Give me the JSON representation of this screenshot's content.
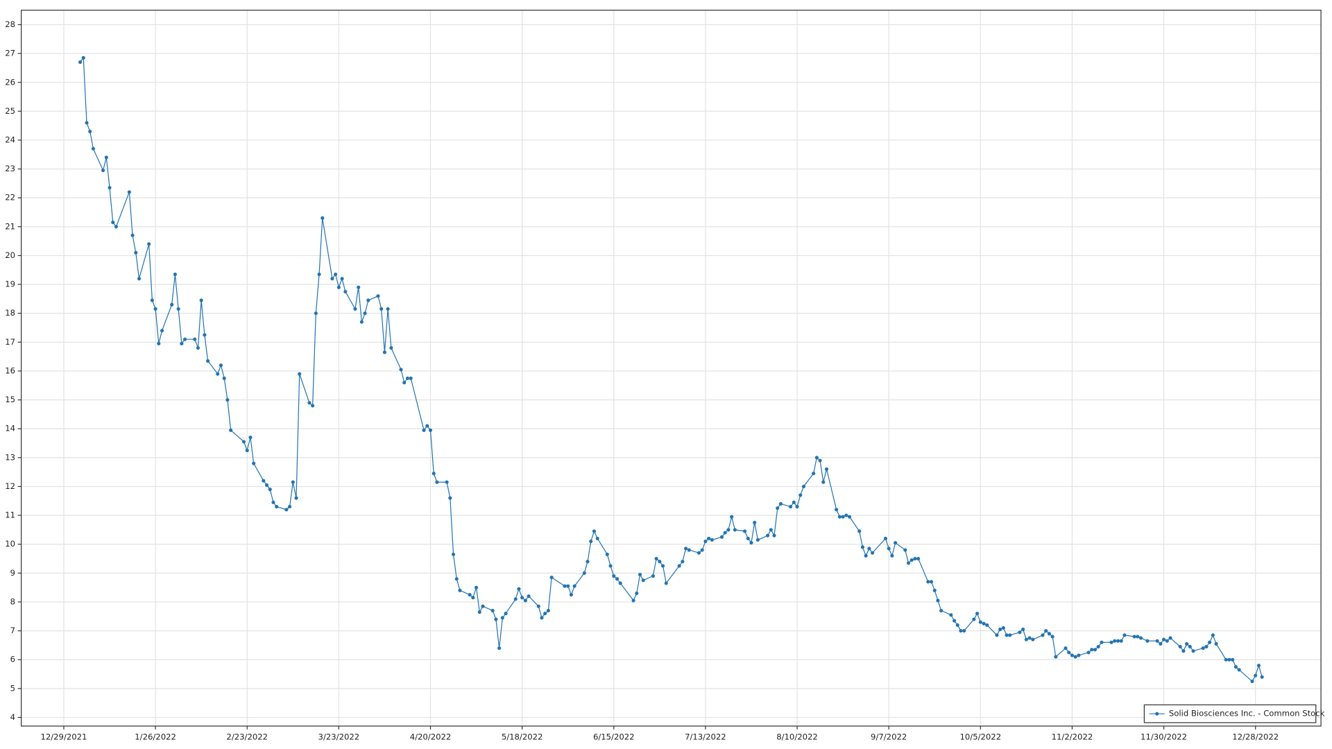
{
  "chart_data": {
    "type": "line",
    "legend": "bottom-right",
    "grid": true,
    "xlim": [
      "12/16/2021",
      "1/17/2023"
    ],
    "xticks": [
      "12/29/2021",
      "1/26/2022",
      "2/23/2022",
      "3/23/2022",
      "4/20/2022",
      "5/18/2022",
      "6/15/2022",
      "7/13/2022",
      "8/10/2022",
      "9/7/2022",
      "10/5/2022",
      "11/2/2022",
      "11/30/2022",
      "12/28/2022"
    ],
    "ylim": [
      3.7,
      28.5
    ],
    "yticks": [
      4,
      5,
      6,
      7,
      8,
      9,
      10,
      11,
      12,
      13,
      14,
      15,
      16,
      17,
      18,
      19,
      20,
      21,
      22,
      23,
      24,
      25,
      26,
      27,
      28
    ],
    "x": [
      "1/3/2022",
      "1/4/2022",
      "1/5/2022",
      "1/6/2022",
      "1/7/2022",
      "1/10/2022",
      "1/11/2022",
      "1/12/2022",
      "1/13/2022",
      "1/14/2022",
      "1/18/2022",
      "1/19/2022",
      "1/20/2022",
      "1/21/2022",
      "1/24/2022",
      "1/25/2022",
      "1/26/2022",
      "1/27/2022",
      "1/28/2022",
      "1/31/2022",
      "2/1/2022",
      "2/2/2022",
      "2/3/2022",
      "2/4/2022",
      "2/7/2022",
      "2/8/2022",
      "2/9/2022",
      "2/10/2022",
      "2/11/2022",
      "2/14/2022",
      "2/15/2022",
      "2/16/2022",
      "2/17/2022",
      "2/18/2022",
      "2/22/2022",
      "2/23/2022",
      "2/24/2022",
      "2/25/2022",
      "2/28/2022",
      "3/1/2022",
      "3/2/2022",
      "3/3/2022",
      "3/4/2022",
      "3/7/2022",
      "3/8/2022",
      "3/9/2022",
      "3/10/2022",
      "3/11/2022",
      "3/14/2022",
      "3/15/2022",
      "3/16/2022",
      "3/17/2022",
      "3/18/2022",
      "3/21/2022",
      "3/22/2022",
      "3/23/2022",
      "3/24/2022",
      "3/25/2022",
      "3/28/2022",
      "3/29/2022",
      "3/30/2022",
      "3/31/2022",
      "4/1/2022",
      "4/4/2022",
      "4/5/2022",
      "4/6/2022",
      "4/7/2022",
      "4/8/2022",
      "4/11/2022",
      "4/12/2022",
      "4/13/2022",
      "4/14/2022",
      "4/18/2022",
      "4/19/2022",
      "4/20/2022",
      "4/21/2022",
      "4/22/2022",
      "4/25/2022",
      "4/26/2022",
      "4/27/2022",
      "4/28/2022",
      "4/29/2022",
      "5/2/2022",
      "5/3/2022",
      "5/4/2022",
      "5/5/2022",
      "5/6/2022",
      "5/9/2022",
      "5/10/2022",
      "5/11/2022",
      "5/12/2022",
      "5/13/2022",
      "5/16/2022",
      "5/17/2022",
      "5/18/2022",
      "5/19/2022",
      "5/20/2022",
      "5/23/2022",
      "5/24/2022",
      "5/25/2022",
      "5/26/2022",
      "5/27/2022",
      "5/31/2022",
      "6/1/2022",
      "6/2/2022",
      "6/3/2022",
      "6/6/2022",
      "6/7/2022",
      "6/8/2022",
      "6/9/2022",
      "6/10/2022",
      "6/13/2022",
      "6/14/2022",
      "6/15/2022",
      "6/16/2022",
      "6/17/2022",
      "6/21/2022",
      "6/22/2022",
      "6/23/2022",
      "6/24/2022",
      "6/27/2022",
      "6/28/2022",
      "6/29/2022",
      "6/30/2022",
      "7/1/2022",
      "7/5/2022",
      "7/6/2022",
      "7/7/2022",
      "7/8/2022",
      "7/11/2022",
      "7/12/2022",
      "7/13/2022",
      "7/14/2022",
      "7/15/2022",
      "7/18/2022",
      "7/19/2022",
      "7/20/2022",
      "7/21/2022",
      "7/22/2022",
      "7/25/2022",
      "7/26/2022",
      "7/27/2022",
      "7/28/2022",
      "7/29/2022",
      "8/1/2022",
      "8/2/2022",
      "8/3/2022",
      "8/4/2022",
      "8/5/2022",
      "8/8/2022",
      "8/9/2022",
      "8/10/2022",
      "8/11/2022",
      "8/12/2022",
      "8/15/2022",
      "8/16/2022",
      "8/17/2022",
      "8/18/2022",
      "8/19/2022",
      "8/22/2022",
      "8/23/2022",
      "8/24/2022",
      "8/25/2022",
      "8/26/2022",
      "8/29/2022",
      "8/30/2022",
      "8/31/2022",
      "9/1/2022",
      "9/2/2022",
      "9/6/2022",
      "9/7/2022",
      "9/8/2022",
      "9/9/2022",
      "9/12/2022",
      "9/13/2022",
      "9/14/2022",
      "9/15/2022",
      "9/16/2022",
      "9/19/2022",
      "9/20/2022",
      "9/21/2022",
      "9/22/2022",
      "9/23/2022",
      "9/26/2022",
      "9/27/2022",
      "9/28/2022",
      "9/29/2022",
      "9/30/2022",
      "10/3/2022",
      "10/4/2022",
      "10/5/2022",
      "10/6/2022",
      "10/7/2022",
      "10/10/2022",
      "10/11/2022",
      "10/12/2022",
      "10/13/2022",
      "10/14/2022",
      "10/17/2022",
      "10/18/2022",
      "10/19/2022",
      "10/20/2022",
      "10/21/2022",
      "10/24/2022",
      "10/25/2022",
      "10/26/2022",
      "10/27/2022",
      "10/28/2022",
      "10/31/2022",
      "11/1/2022",
      "11/2/2022",
      "11/3/2022",
      "11/4/2022",
      "11/7/2022",
      "11/8/2022",
      "11/9/2022",
      "11/10/2022",
      "11/11/2022",
      "11/14/2022",
      "11/15/2022",
      "11/16/2022",
      "11/17/2022",
      "11/18/2022",
      "11/21/2022",
      "11/22/2022",
      "11/23/2022",
      "11/25/2022",
      "11/28/2022",
      "11/29/2022",
      "11/30/2022",
      "12/1/2022",
      "12/2/2022",
      "12/5/2022",
      "12/6/2022",
      "12/7/2022",
      "12/8/2022",
      "12/9/2022",
      "12/12/2022",
      "12/13/2022",
      "12/14/2022",
      "12/15/2022",
      "12/16/2022",
      "12/19/2022",
      "12/20/2022",
      "12/21/2022",
      "12/22/2022",
      "12/23/2022",
      "12/27/2022",
      "12/28/2022",
      "12/29/2022",
      "12/30/2022"
    ],
    "series": [
      {
        "name": "Solid Biosciences Inc. - Common Stock",
        "color": "#2474b0",
        "values": [
          26.7,
          26.85,
          24.6,
          24.3,
          23.7,
          22.95,
          23.4,
          22.35,
          21.15,
          21.0,
          22.2,
          20.7,
          20.1,
          19.2,
          20.4,
          18.45,
          18.15,
          16.95,
          17.4,
          18.3,
          19.35,
          18.15,
          16.95,
          17.1,
          17.1,
          16.8,
          18.45,
          17.25,
          16.35,
          15.9,
          16.2,
          15.75,
          15.0,
          13.95,
          13.55,
          13.25,
          13.7,
          12.8,
          12.2,
          12.05,
          11.9,
          11.45,
          11.3,
          11.2,
          11.3,
          12.15,
          11.6,
          15.9,
          14.9,
          14.8,
          18.0,
          19.35,
          21.3,
          19.2,
          19.35,
          18.9,
          19.2,
          18.75,
          18.15,
          18.9,
          17.7,
          18.0,
          18.45,
          18.6,
          18.15,
          16.65,
          18.15,
          16.8,
          16.05,
          15.6,
          15.75,
          15.75,
          13.95,
          14.1,
          13.95,
          12.45,
          12.15,
          12.15,
          11.6,
          9.65,
          8.8,
          8.4,
          8.25,
          8.15,
          8.5,
          7.65,
          7.85,
          7.7,
          7.4,
          6.4,
          7.45,
          7.6,
          8.1,
          8.45,
          8.15,
          8.05,
          8.2,
          7.85,
          7.45,
          7.6,
          7.7,
          8.85,
          8.55,
          8.55,
          8.25,
          8.55,
          9.0,
          9.4,
          10.1,
          10.45,
          10.2,
          9.65,
          9.25,
          8.9,
          8.8,
          8.65,
          8.05,
          8.3,
          8.95,
          8.75,
          8.9,
          9.5,
          9.4,
          9.25,
          8.65,
          9.25,
          9.4,
          9.85,
          9.8,
          9.7,
          9.8,
          10.1,
          10.2,
          10.15,
          10.25,
          10.4,
          10.5,
          10.95,
          10.5,
          10.45,
          10.2,
          10.05,
          10.75,
          10.15,
          10.3,
          10.5,
          10.3,
          11.25,
          11.4,
          11.3,
          11.45,
          11.3,
          11.7,
          12.0,
          12.45,
          13.0,
          12.9,
          12.15,
          12.6,
          11.2,
          10.95,
          10.95,
          11.0,
          10.95,
          10.45,
          9.9,
          9.6,
          9.85,
          9.7,
          10.2,
          9.85,
          9.6,
          10.05,
          9.8,
          9.35,
          9.45,
          9.5,
          9.5,
          8.7,
          8.7,
          8.4,
          8.05,
          7.7,
          7.55,
          7.35,
          7.2,
          7.0,
          7.0,
          7.4,
          7.6,
          7.3,
          7.25,
          7.2,
          6.85,
          7.05,
          7.1,
          6.85,
          6.85,
          6.95,
          7.05,
          6.7,
          6.75,
          6.7,
          6.85,
          7.0,
          6.9,
          6.8,
          6.1,
          6.4,
          6.25,
          6.15,
          6.1,
          6.15,
          6.25,
          6.35,
          6.35,
          6.45,
          6.6,
          6.6,
          6.65,
          6.65,
          6.65,
          6.85,
          6.8,
          6.8,
          6.75,
          6.65,
          6.65,
          6.55,
          6.7,
          6.65,
          6.75,
          6.45,
          6.3,
          6.55,
          6.45,
          6.3,
          6.4,
          6.45,
          6.6,
          6.85,
          6.55,
          6.0,
          6.0,
          6.0,
          5.75,
          5.65,
          5.25,
          5.45,
          5.8,
          5.4
        ]
      }
    ]
  }
}
